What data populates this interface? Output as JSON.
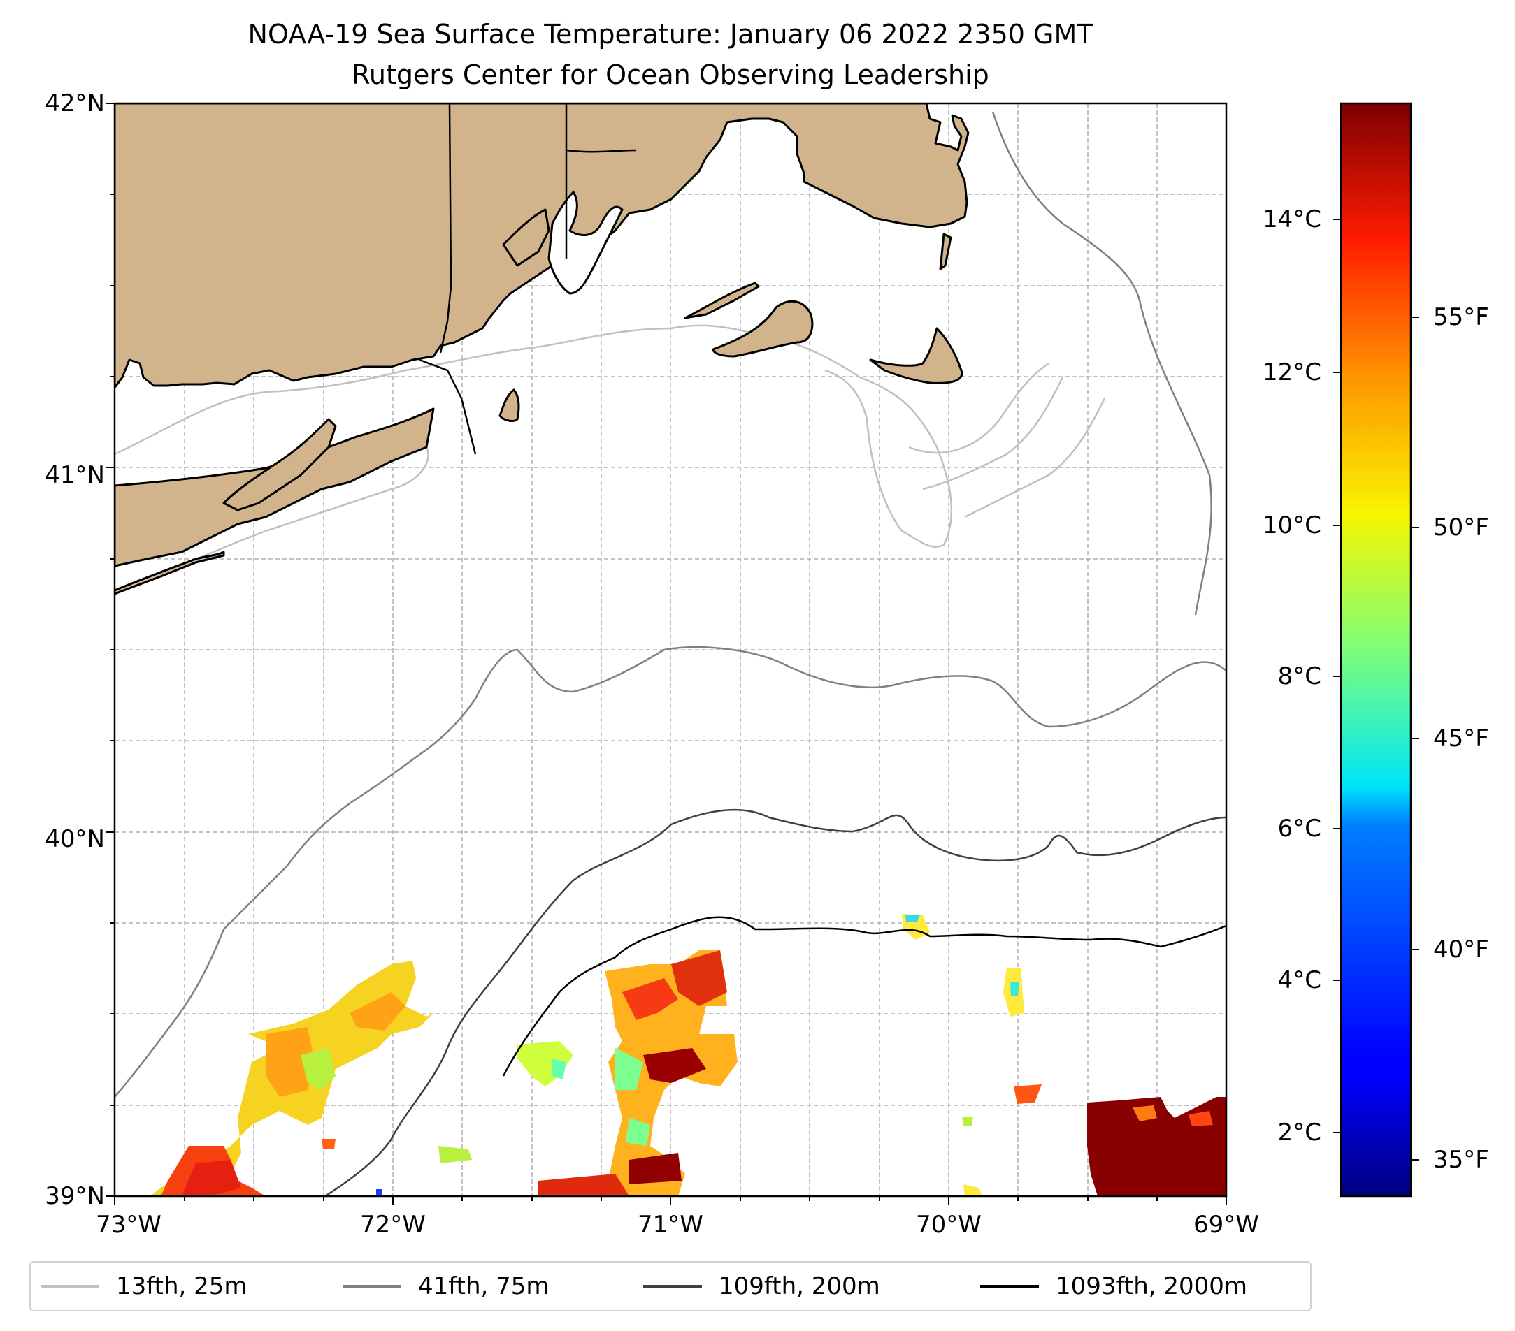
{
  "title": {
    "line1": "NOAA-19 Sea Surface Temperature: January 06 2022 2350 GMT",
    "line2": "Rutgers Center for Ocean Observing Leadership"
  },
  "map": {
    "lat_labels": [
      "42°N",
      "41°N",
      "40°N",
      "39°N"
    ],
    "lon_labels": [
      "73°W",
      "72°W",
      "71°W",
      "70°W",
      "69°W"
    ],
    "extent": {
      "lon_min": -73,
      "lon_max": -69,
      "lat_min": 39,
      "lat_max": 42
    },
    "colors": {
      "land": "#d2b48c",
      "grid": "#b0b0b0"
    }
  },
  "colorbar": {
    "celsius_labels": [
      "14°C",
      "12°C",
      "10°C",
      "8°C",
      "6°C",
      "4°C",
      "2°C"
    ],
    "fahrenheit_labels": [
      "55°F",
      "50°F",
      "45°F",
      "40°F",
      "35°F"
    ],
    "colormap": "jet",
    "range_c": [
      1.3,
      15.6
    ]
  },
  "legend": {
    "items": [
      {
        "label": "13fth, 25m",
        "color": "#c0c0c0"
      },
      {
        "label": "41fth, 75m",
        "color": "#808080"
      },
      {
        "label": "109fth, 200m",
        "color": "#404040"
      },
      {
        "label": "1093fth, 2000m",
        "color": "#000000"
      }
    ]
  }
}
